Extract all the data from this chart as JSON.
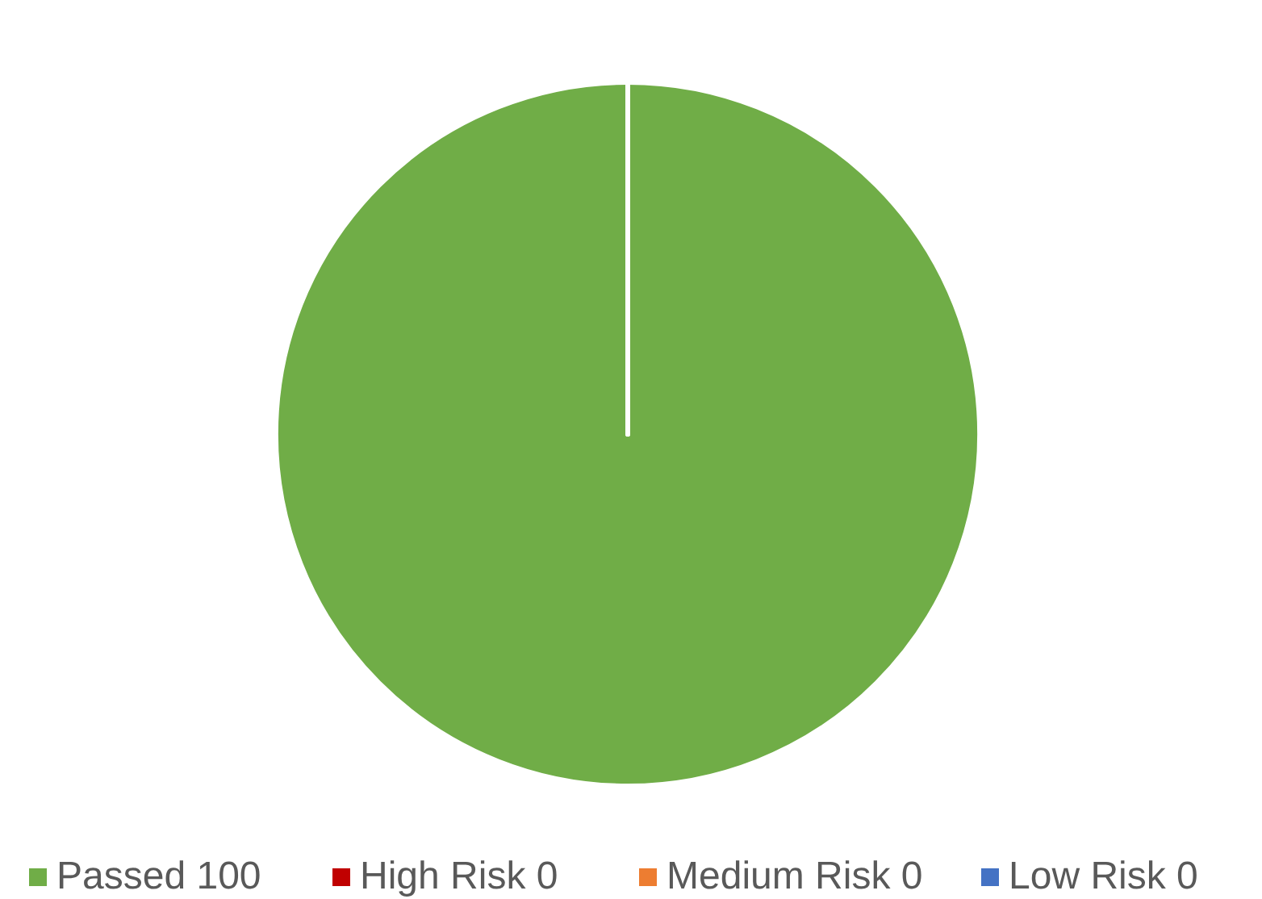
{
  "chart_data": {
    "type": "pie",
    "categories": [
      "Passed",
      "High Risk",
      "Medium Risk",
      "Low Risk"
    ],
    "values": [
      100,
      0,
      0,
      0
    ],
    "colors": [
      "#70ad47",
      "#c00000",
      "#ed7d31",
      "#4472c4"
    ],
    "value_labels": [
      "100",
      "0",
      "0",
      "0"
    ],
    "legend": "bottom"
  }
}
